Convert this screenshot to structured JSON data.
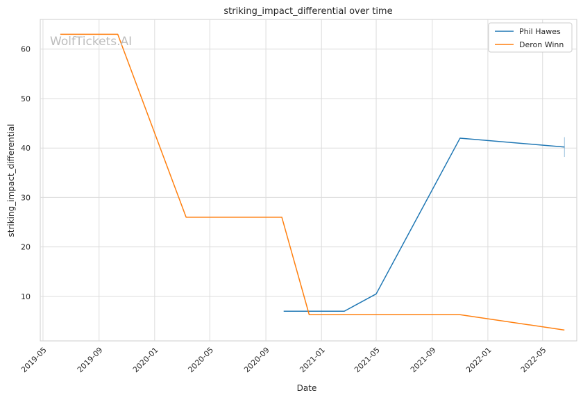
{
  "chart_data": {
    "type": "line",
    "title": "striking_impact_differential over time",
    "xlabel": "Date",
    "ylabel": "striking_impact_differential",
    "watermark": "WolfTickets.AI",
    "x_ticks": [
      "2019-05",
      "2019-09",
      "2020-01",
      "2020-05",
      "2020-09",
      "2021-01",
      "2021-05",
      "2021-09",
      "2022-01",
      "2022-05"
    ],
    "y_ticks": [
      10,
      20,
      30,
      40,
      50,
      60
    ],
    "xlim": [
      "2019-04-25",
      "2022-07-15"
    ],
    "ylim": [
      1,
      66
    ],
    "grid": true,
    "legend_position": "top-right",
    "series": [
      {
        "name": "Phil Hawes",
        "color": "#1f77b4",
        "points": [
          {
            "x": "2020-10-10",
            "y": 7.0
          },
          {
            "x": "2021-02-20",
            "y": 7.0
          },
          {
            "x": "2021-05-01",
            "y": 10.5
          },
          {
            "x": "2021-11-01",
            "y": 42.0
          },
          {
            "x": "2022-06-18",
            "y": 40.2
          }
        ],
        "error_bar": {
          "x": "2022-06-18",
          "low": 38.2,
          "high": 42.2
        }
      },
      {
        "name": "Deron Winn",
        "color": "#ff7f0e",
        "points": [
          {
            "x": "2019-06-08",
            "y": 63.0
          },
          {
            "x": "2019-10-12",
            "y": 63.0
          },
          {
            "x": "2020-03-10",
            "y": 26.0
          },
          {
            "x": "2020-10-06",
            "y": 26.0
          },
          {
            "x": "2020-12-05",
            "y": 6.3
          },
          {
            "x": "2021-11-01",
            "y": 6.3
          },
          {
            "x": "2022-06-18",
            "y": 3.2
          }
        ]
      }
    ]
  }
}
